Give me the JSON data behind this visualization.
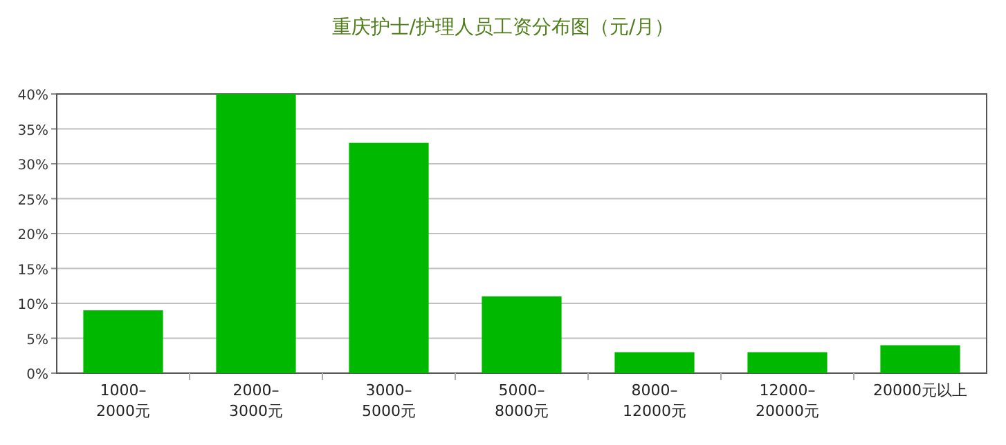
{
  "chart_data": {
    "type": "bar",
    "title": "重庆护士/护理人员工资分布图（元/月）",
    "categories": [
      "1000–\n2000元",
      "2000–\n3000元",
      "3000–\n5000元",
      "5000–\n8000元",
      "8000–\n12000元",
      "12000–\n20000元",
      "20000元以上"
    ],
    "values": [
      9,
      40,
      33,
      11,
      3,
      3,
      4
    ],
    "color": "#00b800",
    "ylim": [
      0,
      40
    ],
    "yticks": [
      {
        "value": 0,
        "label": "0%"
      },
      {
        "value": 5,
        "label": "5%"
      },
      {
        "value": 10,
        "label": "10%"
      },
      {
        "value": 15,
        "label": "15%"
      },
      {
        "value": 20,
        "label": "20%"
      },
      {
        "value": 25,
        "label": "25%"
      },
      {
        "value": 30,
        "label": "30%"
      },
      {
        "value": 35,
        "label": "35%"
      },
      {
        "value": 40,
        "label": "40%"
      }
    ],
    "grid": "y"
  }
}
